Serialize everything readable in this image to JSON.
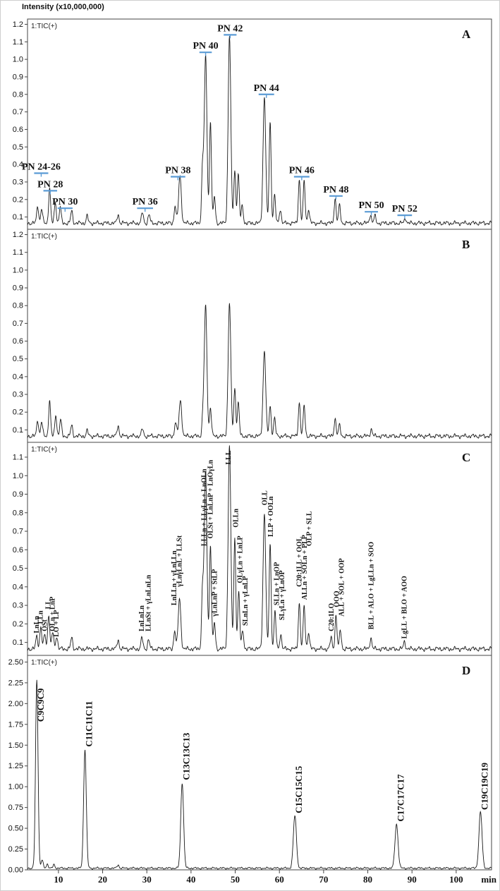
{
  "figure": {
    "intensity_label": "Intensity (x10,000,000)",
    "accent_color": "#5b9bd5",
    "x_axis": {
      "min": 3,
      "max": 108,
      "ticks": [
        10,
        20,
        30,
        40,
        50,
        60,
        70,
        80,
        90,
        100
      ],
      "tick_labels": [
        "10",
        "20",
        "30",
        "40",
        "50",
        "60",
        "70",
        "80",
        "90",
        "100"
      ],
      "unit_label": "min"
    }
  },
  "chart_data": [
    {
      "id": "A",
      "type": "line",
      "panel_label": "A",
      "trace_label": "1:TIC(+)",
      "ylim": [
        0.03,
        1.23
      ],
      "y_ticks": [
        0.1,
        0.2,
        0.3,
        0.4,
        0.5,
        0.6,
        0.7,
        0.8,
        0.9,
        1.0,
        1.1,
        1.2
      ],
      "y_tick_labels": [
        "0.1",
        "0.2",
        "0.3",
        "0.4",
        "0.5",
        "0.6",
        "0.7",
        "0.8",
        "0.9",
        "1.0",
        "1.1",
        "1.2"
      ],
      "baseline": 0.065,
      "peaks": [
        {
          "t": 5.3,
          "h": 0.1
        },
        {
          "t": 6.2,
          "h": 0.08
        },
        {
          "t": 8.0,
          "h": 0.2
        },
        {
          "t": 9.3,
          "h": 0.12
        },
        {
          "t": 10.4,
          "h": 0.09
        },
        {
          "t": 13.0,
          "h": 0.07
        },
        {
          "t": 16.5,
          "h": 0.04
        },
        {
          "t": 23.5,
          "h": 0.05
        },
        {
          "t": 29.0,
          "h": 0.06
        },
        {
          "t": 30.5,
          "h": 0.05
        },
        {
          "t": 36.4,
          "h": 0.1
        },
        {
          "t": 37.5,
          "h": 0.27,
          "w": 0.3
        },
        {
          "t": 42.6,
          "h": 0.3
        },
        {
          "t": 43.3,
          "h": 0.95,
          "w": 0.3
        },
        {
          "t": 44.4,
          "h": 0.58
        },
        {
          "t": 45.3,
          "h": 0.15
        },
        {
          "t": 48.7,
          "h": 1.07,
          "w": 0.3
        },
        {
          "t": 49.9,
          "h": 0.3
        },
        {
          "t": 50.7,
          "h": 0.28
        },
        {
          "t": 51.6,
          "h": 0.1
        },
        {
          "t": 56.6,
          "h": 0.72,
          "w": 0.3
        },
        {
          "t": 57.9,
          "h": 0.58
        },
        {
          "t": 58.9,
          "h": 0.16
        },
        {
          "t": 60.2,
          "h": 0.08
        },
        {
          "t": 64.5,
          "h": 0.25
        },
        {
          "t": 65.6,
          "h": 0.24
        },
        {
          "t": 66.6,
          "h": 0.08
        },
        {
          "t": 72.6,
          "h": 0.14
        },
        {
          "t": 73.6,
          "h": 0.1
        },
        {
          "t": 80.6,
          "h": 0.05
        },
        {
          "t": 81.6,
          "h": 0.04
        },
        {
          "t": 88.5,
          "h": 0.03
        }
      ],
      "annotations": [
        {
          "style": "bracket",
          "label": "PN 24-26",
          "span": [
            4.5,
            7.7
          ],
          "y": 0.35
        },
        {
          "style": "bracket",
          "label": "PN 28",
          "span": [
            6.6,
            9.7
          ],
          "y": 0.25
        },
        {
          "style": "bracket",
          "label": "PN 30",
          "span": [
            9.8,
            13.2
          ],
          "y": 0.15
        },
        {
          "style": "bracket",
          "label": "PN 36",
          "span": [
            27.8,
            31.4
          ],
          "y": 0.15
        },
        {
          "style": "bracket",
          "label": "PN 38",
          "span": [
            35.4,
            38.7
          ],
          "y": 0.33
        },
        {
          "style": "bracket",
          "label": "PN 40",
          "span": [
            41.9,
            44.7
          ],
          "y": 1.04
        },
        {
          "style": "bracket",
          "label": "PN 42",
          "span": [
            47.4,
            50.3
          ],
          "y": 1.14
        },
        {
          "style": "bracket",
          "label": "PN 44",
          "span": [
            55.3,
            58.8
          ],
          "y": 0.8
        },
        {
          "style": "bracket",
          "label": "PN 46",
          "span": [
            63.3,
            66.8
          ],
          "y": 0.33
        },
        {
          "style": "bracket",
          "label": "PN 48",
          "span": [
            71.3,
            74.3
          ],
          "y": 0.22
        },
        {
          "style": "bracket",
          "label": "PN 50",
          "span": [
            79.3,
            82.3
          ],
          "y": 0.13
        },
        {
          "style": "bracket",
          "label": "PN 52",
          "span": [
            86.7,
            90.0
          ],
          "y": 0.11
        }
      ]
    },
    {
      "id": "B",
      "type": "line",
      "panel_label": "B",
      "trace_label": "1:TIC(+)",
      "ylim": [
        0.03,
        1.23
      ],
      "y_ticks": [
        0.1,
        0.2,
        0.3,
        0.4,
        0.5,
        0.6,
        0.7,
        0.8,
        0.9,
        1.0,
        1.1,
        1.2
      ],
      "y_tick_labels": [
        "0.1",
        "0.2",
        "0.3",
        "0.4",
        "0.5",
        "0.6",
        "0.7",
        "0.8",
        "0.9",
        "1.0",
        "1.1",
        "1.2"
      ],
      "baseline": 0.065,
      "peaks": [
        {
          "t": 5.3,
          "h": 0.09
        },
        {
          "t": 6.2,
          "h": 0.08
        },
        {
          "t": 8.0,
          "h": 0.2
        },
        {
          "t": 9.4,
          "h": 0.12
        },
        {
          "t": 10.5,
          "h": 0.09
        },
        {
          "t": 13.0,
          "h": 0.06
        },
        {
          "t": 16.5,
          "h": 0.03
        },
        {
          "t": 23.5,
          "h": 0.06
        },
        {
          "t": 29.0,
          "h": 0.04
        },
        {
          "t": 36.5,
          "h": 0.08
        },
        {
          "t": 37.6,
          "h": 0.2,
          "w": 0.3
        },
        {
          "t": 42.7,
          "h": 0.1
        },
        {
          "t": 43.3,
          "h": 0.73,
          "w": 0.3
        },
        {
          "t": 44.4,
          "h": 0.16
        },
        {
          "t": 48.7,
          "h": 0.75,
          "w": 0.3
        },
        {
          "t": 49.9,
          "h": 0.27
        },
        {
          "t": 50.7,
          "h": 0.19
        },
        {
          "t": 56.6,
          "h": 0.48,
          "w": 0.3
        },
        {
          "t": 57.9,
          "h": 0.17
        },
        {
          "t": 58.9,
          "h": 0.1
        },
        {
          "t": 64.5,
          "h": 0.19
        },
        {
          "t": 65.6,
          "h": 0.17
        },
        {
          "t": 72.6,
          "h": 0.1
        },
        {
          "t": 73.6,
          "h": 0.06
        },
        {
          "t": 80.8,
          "h": 0.04
        }
      ],
      "annotations": []
    },
    {
      "id": "C",
      "type": "line",
      "panel_label": "C",
      "trace_label": "1:TIC(+)",
      "ylim": [
        0.03,
        1.18
      ],
      "y_ticks": [
        0.1,
        0.2,
        0.3,
        0.4,
        0.5,
        0.6,
        0.7,
        0.8,
        0.9,
        1.0,
        1.1
      ],
      "y_tick_labels": [
        "0.1",
        "0.2",
        "0.3",
        "0.4",
        "0.5",
        "0.6",
        "0.7",
        "0.8",
        "0.9",
        "1.0",
        "1.1"
      ],
      "baseline": 0.065,
      "peaks": [
        {
          "t": 5.1,
          "h": 0.07
        },
        {
          "t": 6.0,
          "h": 0.12
        },
        {
          "t": 6.9,
          "h": 0.08
        },
        {
          "t": 7.8,
          "h": 0.19
        },
        {
          "t": 8.7,
          "h": 0.09
        },
        {
          "t": 9.6,
          "h": 0.07
        },
        {
          "t": 13.0,
          "h": 0.06
        },
        {
          "t": 23.5,
          "h": 0.05
        },
        {
          "t": 28.9,
          "h": 0.06
        },
        {
          "t": 30.4,
          "h": 0.05
        },
        {
          "t": 36.3,
          "h": 0.1
        },
        {
          "t": 37.4,
          "h": 0.27,
          "w": 0.3
        },
        {
          "t": 42.6,
          "h": 0.3
        },
        {
          "t": 43.3,
          "h": 0.95,
          "w": 0.3
        },
        {
          "t": 44.4,
          "h": 0.56
        },
        {
          "t": 45.3,
          "h": 0.14
        },
        {
          "t": 48.7,
          "h": 1.1,
          "w": 0.3
        },
        {
          "t": 49.9,
          "h": 0.6
        },
        {
          "t": 50.8,
          "h": 0.31
        },
        {
          "t": 51.7,
          "h": 0.1
        },
        {
          "t": 56.6,
          "h": 0.73,
          "w": 0.3
        },
        {
          "t": 57.9,
          "h": 0.57
        },
        {
          "t": 59.0,
          "h": 0.2
        },
        {
          "t": 60.3,
          "h": 0.08
        },
        {
          "t": 64.5,
          "h": 0.25
        },
        {
          "t": 65.6,
          "h": 0.23
        },
        {
          "t": 66.6,
          "h": 0.09
        },
        {
          "t": 71.7,
          "h": 0.06
        },
        {
          "t": 72.8,
          "h": 0.18
        },
        {
          "t": 73.8,
          "h": 0.1
        },
        {
          "t": 80.7,
          "h": 0.06
        },
        {
          "t": 88.3,
          "h": 0.04
        }
      ],
      "annotations": [
        {
          "style": "vertical",
          "label": "LnLn",
          "t": 5.0,
          "y": 0.15
        },
        {
          "style": "vertical",
          "label": "LLn",
          "t": 5.9,
          "y": 0.2
        },
        {
          "style": "vertical",
          "label": "OSt",
          "t": 6.8,
          "y": 0.16
        },
        {
          "style": "vertical",
          "label": "LL",
          "t": 7.6,
          "y": 0.28
        },
        {
          "style": "vertical",
          "label": "OLn + LnP",
          "t": 8.6,
          "y": 0.16
        },
        {
          "style": "vertical",
          "label": "LO + LP",
          "t": 9.5,
          "y": 0.13
        },
        {
          "style": "vertical",
          "label": "LnLnLn",
          "t": 28.8,
          "y": 0.16
        },
        {
          "style": "vertical",
          "label": "LLnSt + γLnLnLn",
          "t": 30.3,
          "y": 0.16
        },
        {
          "style": "vertical",
          "label": "LnLLn + γLnLLn",
          "t": 36.1,
          "y": 0.3
        },
        {
          "style": "vertical",
          "label": "γLnγLnL + LLSt",
          "t": 37.3,
          "y": 0.4
        },
        {
          "style": "vertical",
          "label": "LLLn + LLγLn + LnOLn",
          "t": 42.9,
          "y": 0.62
        },
        {
          "style": "vertical",
          "label": "OLSt + LnLnP + LnOγLn",
          "t": 44.3,
          "y": 0.66
        },
        {
          "style": "vertical",
          "label": "γLnLnP + StLP",
          "t": 45.3,
          "y": 0.24
        },
        {
          "style": "vertical",
          "label": "LLL",
          "t": 48.4,
          "y": 1.06
        },
        {
          "style": "vertical",
          "label": "OLLn",
          "t": 50.1,
          "y": 0.72
        },
        {
          "style": "vertical",
          "label": "OLγLn + LnLP",
          "t": 51.0,
          "y": 0.42
        },
        {
          "style": "vertical",
          "label": "SLnLn + γLnLP",
          "t": 52.2,
          "y": 0.19
        },
        {
          "style": "vertical",
          "label": "OLL",
          "t": 56.6,
          "y": 0.84
        },
        {
          "style": "vertical",
          "label": "LLP + OOLn",
          "t": 58.0,
          "y": 0.67
        },
        {
          "style": "vertical",
          "label": "SLLn + LnOP",
          "t": 59.3,
          "y": 0.3
        },
        {
          "style": "vertical",
          "label": "SLγLn + γLnOP",
          "t": 60.5,
          "y": 0.22
        },
        {
          "style": "vertical",
          "label": "C20:1LL + OOL",
          "t": 64.4,
          "y": 0.4
        },
        {
          "style": "vertical",
          "label": "ALLn + SOLn + PLP",
          "t": 65.6,
          "y": 0.33
        },
        {
          "style": "vertical",
          "label": "OLP + SLL",
          "t": 66.7,
          "y": 0.62
        },
        {
          "style": "vertical",
          "label": "C20:1LO",
          "t": 71.7,
          "y": 0.16
        },
        {
          "style": "vertical",
          "label": "OOO",
          "t": 72.9,
          "y": 0.29
        },
        {
          "style": "vertical",
          "label": "ALL + SOL + OOP",
          "t": 74.0,
          "y": 0.24
        },
        {
          "style": "vertical",
          "label": "BLL + ALO + LgLLn + SOO",
          "t": 80.7,
          "y": 0.17
        },
        {
          "style": "vertical",
          "label": "LgLL + BLO + AOO",
          "t": 88.2,
          "y": 0.12
        }
      ]
    },
    {
      "id": "D",
      "type": "line",
      "panel_label": "D",
      "trace_label": "1:TIC(+)",
      "ylim": [
        0.0,
        2.58
      ],
      "y_ticks": [
        0.0,
        0.25,
        0.5,
        0.75,
        1.0,
        1.25,
        1.5,
        1.75,
        2.0,
        2.25,
        2.5
      ],
      "y_tick_labels": [
        "0.00",
        "0.25",
        "0.50",
        "0.75",
        "1.00",
        "1.25",
        "1.50",
        "1.75",
        "2.00",
        "2.25",
        "2.50"
      ],
      "baseline": 0.02,
      "peaks": [
        {
          "t": 5.1,
          "h": 2.26,
          "w": 0.28
        },
        {
          "t": 6.3,
          "h": 0.1
        },
        {
          "t": 7.5,
          "h": 0.05
        },
        {
          "t": 9.0,
          "h": 0.04
        },
        {
          "t": 16.0,
          "h": 1.43,
          "w": 0.3
        },
        {
          "t": 23.5,
          "h": 0.04
        },
        {
          "t": 38.0,
          "h": 1.03,
          "w": 0.32
        },
        {
          "t": 63.5,
          "h": 0.63,
          "w": 0.35
        },
        {
          "t": 86.5,
          "h": 0.53,
          "w": 0.35
        },
        {
          "t": 105.5,
          "h": 0.68,
          "w": 0.35
        }
      ],
      "annotations": [
        {
          "style": "vertical",
          "label": "C9C9C9",
          "t": 5.9,
          "y": 1.78
        },
        {
          "style": "vertical",
          "label": "C11C11C11",
          "t": 16.8,
          "y": 1.48
        },
        {
          "style": "vertical",
          "label": "C13C13C13",
          "t": 38.8,
          "y": 1.08
        },
        {
          "style": "vertical",
          "label": "C15C15C15",
          "t": 64.3,
          "y": 0.68
        },
        {
          "style": "vertical",
          "label": "C17C17C17",
          "t": 87.3,
          "y": 0.58
        },
        {
          "style": "vertical",
          "label": "C19C19C19",
          "t": 106.3,
          "y": 0.72
        }
      ]
    }
  ]
}
